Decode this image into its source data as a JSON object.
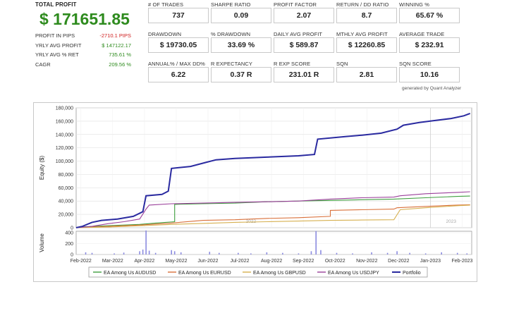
{
  "summary": {
    "total_profit_label": "TOTAL PROFIT",
    "total_profit_value": "$ 171651.85",
    "rows": [
      {
        "label": "PROFIT IN PIPS",
        "value": "-2710.1 PIPS",
        "color": "#d02020"
      },
      {
        "label": "YRLY AVG PROFIT",
        "value": "$ 147122.17",
        "color": "#2e8b1e"
      },
      {
        "label": "YRLY AVG % RET",
        "value": "735.61 %",
        "color": "#2e8b1e"
      },
      {
        "label": "CAGR",
        "value": "209.56 %",
        "color": "#2e8b1e"
      }
    ]
  },
  "metrics": [
    {
      "label": "# OF TRADES",
      "value": "737"
    },
    {
      "label": "SHARPE RATIO",
      "value": "0.09"
    },
    {
      "label": "PROFIT FACTOR",
      "value": "2.07"
    },
    {
      "label": "RETURN / DD RATIO",
      "value": "8.7"
    },
    {
      "label": "WINNING %",
      "value": "65.67 %"
    },
    {
      "label": "DRAWDOWN",
      "value": "$ 19730.05"
    },
    {
      "label": "% DRAWDOWN",
      "value": "33.69 %"
    },
    {
      "label": "DAILY AVG PROFIT",
      "value": "$ 589.87"
    },
    {
      "label": "MTHLY AVG PROFIT",
      "value": "$ 12260.85"
    },
    {
      "label": "AVERAGE TRADE",
      "value": "$ 232.91"
    },
    {
      "label": "ANNUAL% / MAX DD%",
      "value": "6.22"
    },
    {
      "label": "R EXPECTANCY",
      "value": "0.37 R"
    },
    {
      "label": "R EXP SCORE",
      "value": "231.01 R"
    },
    {
      "label": "SQN",
      "value": "2.81"
    },
    {
      "label": "SQN SCORE",
      "value": "10.16"
    }
  ],
  "generated_by": "generated by Quant Analyzer",
  "chart_data": {
    "type": "line",
    "ylabel": "Equity ($)",
    "volume_label": "Volume",
    "ylim": [
      0,
      180000
    ],
    "yticks": [
      "0",
      "20,000",
      "40,000",
      "60,000",
      "80,000",
      "100,000",
      "120,000",
      "140,000",
      "160,000",
      "180,000"
    ],
    "volume_ylim": [
      0,
      400
    ],
    "volume_yticks": [
      "0",
      "200",
      "400"
    ],
    "xticks": [
      "Feb-2022",
      "Mar-2022",
      "Apr-2022",
      "May-2022",
      "Jun-2022",
      "Jul-2022",
      "Aug-2022",
      "Sep-2022",
      "Oct-2022",
      "Nov-2022",
      "Dec-2022",
      "Jan-2023",
      "Feb-2023"
    ],
    "year_markers": [
      "2022",
      "2023"
    ],
    "grid": true,
    "legend_position": "bottom",
    "series": [
      {
        "name": "EA Among Us  AUDUSD",
        "color": "#3f9f3f",
        "points": [
          [
            0,
            0
          ],
          [
            0.3,
            1500
          ],
          [
            1,
            3000
          ],
          [
            2,
            5000
          ],
          [
            2.5,
            7000
          ],
          [
            3.1,
            9000
          ],
          [
            3.1,
            35000
          ],
          [
            4,
            36000
          ],
          [
            5,
            37000
          ],
          [
            6,
            39000
          ],
          [
            7,
            40000
          ],
          [
            8,
            41000
          ],
          [
            9,
            42000
          ],
          [
            10,
            43000
          ],
          [
            11,
            45000
          ],
          [
            12,
            47000
          ],
          [
            12.4,
            47500
          ]
        ]
      },
      {
        "name": "EA Among Us  EURUSD",
        "color": "#d9703a",
        "points": [
          [
            0,
            0
          ],
          [
            1,
            2000
          ],
          [
            2,
            4000
          ],
          [
            3,
            7000
          ],
          [
            4,
            11000
          ],
          [
            5,
            12000
          ],
          [
            6,
            14000
          ],
          [
            7,
            15000
          ],
          [
            8,
            17000
          ],
          [
            8,
            26000
          ],
          [
            9,
            27000
          ],
          [
            10,
            28000
          ],
          [
            10.1,
            30000
          ],
          [
            11,
            32000
          ],
          [
            12,
            34000
          ],
          [
            12.4,
            34500
          ]
        ]
      },
      {
        "name": "EA Among Us  GBPUSD",
        "color": "#d6b050",
        "points": [
          [
            0,
            0
          ],
          [
            1,
            1000
          ],
          [
            2,
            3000
          ],
          [
            3,
            5000
          ],
          [
            4,
            6500
          ],
          [
            5,
            8000
          ],
          [
            6,
            9000
          ],
          [
            7,
            10000
          ],
          [
            8,
            11000
          ],
          [
            9,
            11500
          ],
          [
            10,
            12000
          ],
          [
            10.2,
            27000
          ],
          [
            11,
            30000
          ],
          [
            12,
            33000
          ],
          [
            12.4,
            34000
          ]
        ]
      },
      {
        "name": "EA Among Us  USDJPY",
        "color": "#9a3f9a",
        "points": [
          [
            0,
            0
          ],
          [
            0.5,
            2000
          ],
          [
            1,
            6000
          ],
          [
            1.5,
            9000
          ],
          [
            2,
            13000
          ],
          [
            2.2,
            28000
          ],
          [
            2.3,
            34000
          ],
          [
            3,
            36000
          ],
          [
            4,
            37000
          ],
          [
            5,
            38000
          ],
          [
            6,
            39000
          ],
          [
            7,
            40000
          ],
          [
            8,
            43000
          ],
          [
            9,
            45000
          ],
          [
            10,
            46000
          ],
          [
            10.2,
            48000
          ],
          [
            11,
            51000
          ],
          [
            12,
            53000
          ],
          [
            12.4,
            54000
          ]
        ]
      },
      {
        "name": "Portfolio",
        "color": "#2a2aa0",
        "points": [
          [
            0,
            0
          ],
          [
            0.2,
            2000
          ],
          [
            0.5,
            8000
          ],
          [
            0.8,
            11000
          ],
          [
            1.3,
            13000
          ],
          [
            1.8,
            17000
          ],
          [
            2.1,
            24000
          ],
          [
            2.2,
            48000
          ],
          [
            2.7,
            50000
          ],
          [
            2.9,
            55000
          ],
          [
            3.0,
            89000
          ],
          [
            3.6,
            92000
          ],
          [
            4.0,
            97000
          ],
          [
            4.4,
            102000
          ],
          [
            5.0,
            104000
          ],
          [
            6.0,
            106000
          ],
          [
            7.0,
            108000
          ],
          [
            7.5,
            110000
          ],
          [
            7.6,
            133000
          ],
          [
            8.5,
            137000
          ],
          [
            9.0,
            139000
          ],
          [
            9.6,
            142000
          ],
          [
            10.1,
            148000
          ],
          [
            10.3,
            154000
          ],
          [
            10.8,
            158000
          ],
          [
            11.3,
            161000
          ],
          [
            11.8,
            164000
          ],
          [
            12.2,
            168000
          ],
          [
            12.4,
            171651
          ]
        ]
      }
    ],
    "volume_bars": [
      [
        0.3,
        40
      ],
      [
        0.5,
        30
      ],
      [
        1.2,
        20
      ],
      [
        1.5,
        35
      ],
      [
        2.0,
        60
      ],
      [
        2.1,
        90
      ],
      [
        2.2,
        440
      ],
      [
        2.3,
        70
      ],
      [
        2.5,
        30
      ],
      [
        3.0,
        80
      ],
      [
        3.1,
        60
      ],
      [
        3.3,
        40
      ],
      [
        4.2,
        50
      ],
      [
        4.5,
        30
      ],
      [
        5.1,
        30
      ],
      [
        5.5,
        20
      ],
      [
        6.0,
        40
      ],
      [
        6.5,
        30
      ],
      [
        7.0,
        20
      ],
      [
        7.4,
        60
      ],
      [
        7.55,
        430
      ],
      [
        7.7,
        80
      ],
      [
        8.2,
        30
      ],
      [
        8.7,
        20
      ],
      [
        9.3,
        40
      ],
      [
        9.8,
        30
      ],
      [
        10.1,
        60
      ],
      [
        10.5,
        30
      ],
      [
        11.0,
        20
      ],
      [
        11.5,
        40
      ],
      [
        12.0,
        30
      ],
      [
        12.3,
        20
      ]
    ]
  }
}
